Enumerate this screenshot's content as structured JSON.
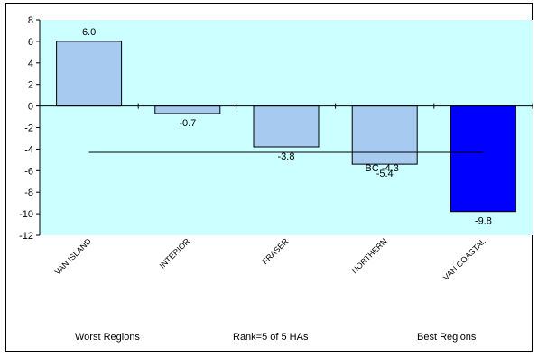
{
  "chart_data": {
    "type": "bar",
    "categories": [
      "VAN ISLAND",
      "INTERIOR",
      "FRASER",
      "NORTHERN",
      "VAN COASTAL"
    ],
    "values": [
      6.0,
      -0.7,
      -3.8,
      -5.4,
      -9.8
    ],
    "value_labels": [
      "6.0",
      "-0.7",
      "-3.8",
      "-5.4",
      "-9.8"
    ],
    "ylim": [
      -12,
      8
    ],
    "yticks": [
      8,
      6,
      4,
      2,
      0,
      -2,
      -4,
      -6,
      -8,
      -10,
      -12
    ],
    "reference_line": {
      "label": "BC -4.3",
      "value": -4.3
    },
    "highlight_index": 4,
    "colors": {
      "plot_background": "#ccffff",
      "bar": "#a6caf0",
      "highlight_bar": "#0000ff",
      "bar_border": "#000000",
      "reference_line": "#000000"
    },
    "grid": false,
    "legend": "none"
  },
  "footer": {
    "left": "Worst Regions",
    "center": "Rank=5 of 5 HAs",
    "right": "Best Regions"
  }
}
